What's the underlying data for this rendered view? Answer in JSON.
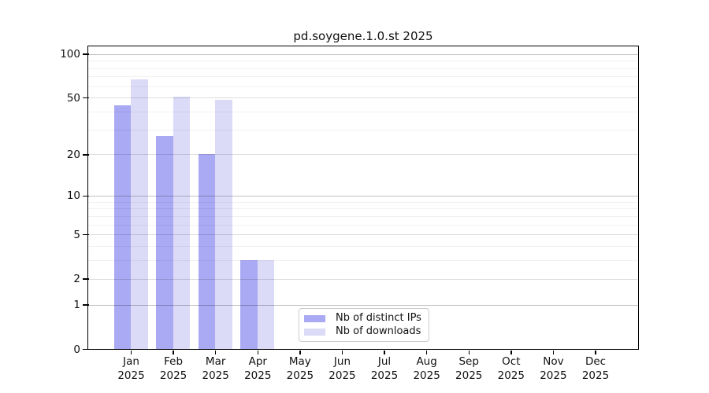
{
  "figure": {
    "background": "#ffffff",
    "axis_color": "#000000",
    "grid_major_power_color": "rgba(0,0,0,0.24)",
    "grid_major_color": "rgba(0,0,0,0.13)",
    "grid_minor_color": "rgba(0,0,0,0.055)"
  },
  "chart_data": {
    "type": "bar",
    "title": "pd.soygene.1.0.st 2025",
    "x_year": "2025",
    "categories": [
      "Jan",
      "Feb",
      "Mar",
      "Apr",
      "May",
      "Jun",
      "Jul",
      "Aug",
      "Sep",
      "Oct",
      "Nov",
      "Dec"
    ],
    "series": [
      {
        "name": "Nb of distinct IPs",
        "color": "#a9a9f4",
        "values": [
          44,
          27,
          20,
          3,
          0,
          0,
          0,
          0,
          0,
          0,
          0,
          0
        ]
      },
      {
        "name": "Nb of downloads",
        "color": "#dbdbf8",
        "values": [
          67,
          51,
          48,
          3,
          0,
          0,
          0,
          0,
          0,
          0,
          0,
          0
        ]
      }
    ],
    "xlabel": "",
    "ylabel": "",
    "yscale": "log1p",
    "ylim": [
      0,
      112.7
    ],
    "yticks": [
      0,
      1,
      2,
      5,
      10,
      20,
      50,
      100
    ],
    "yticks_minor": [
      3,
      4,
      6,
      7,
      8,
      9,
      30,
      40,
      60,
      70,
      80,
      90
    ],
    "grid": "horizontal",
    "legend_position": "inside-bottom-center"
  }
}
